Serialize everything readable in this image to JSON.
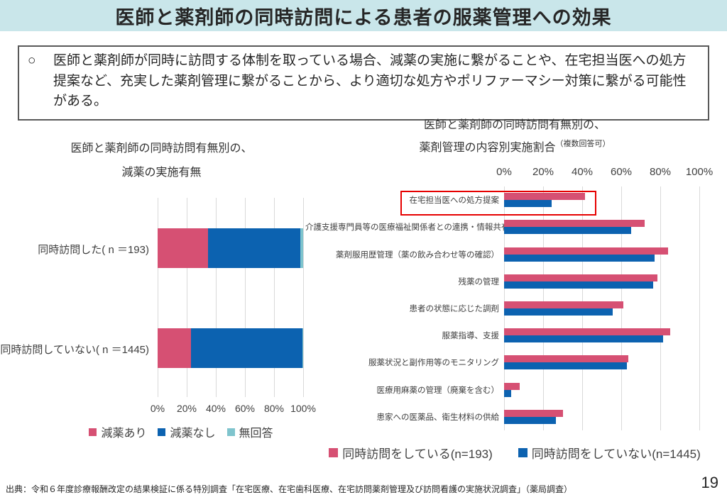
{
  "page": {
    "title": "医師と薬剤師の同時訪問による患者の服薬管理への効果",
    "bullet": "○",
    "summary": "医師と薬剤師が同時に訪問する体制を取っている場合、減薬の実施に繋がることや、在宅担当医への処方提案など、充実した薬剤管理に繋がることから、より適切な処方やポリファーマシー対策に繋がる可能性がある。",
    "source": "出典：令和６年度診療報酬改定の結果検証に係る特別調査「在宅医療、在宅歯科医療、在宅訪問薬剤管理及び訪問看護の実施状況調査」（薬局調査）",
    "page_number": "19"
  },
  "colors": {
    "header_bg": "#c9e6ea",
    "pink": "#d65073",
    "blue": "#0c62b0",
    "teal": "#7fc4cd",
    "gridline": "#d9d9d9",
    "highlight_red": "#e60000"
  },
  "chart_data": [
    {
      "type": "bar",
      "orientation": "horizontal-stacked",
      "title_line1": "医師と薬剤師の同時訪問有無別の、",
      "title_line2": "減薬の実施有無",
      "categories": [
        "同時訪問した( n ＝193)",
        "同時訪問していない( n ＝1445)"
      ],
      "series": [
        {
          "name": "減薬あり",
          "color": "#d65073",
          "values": [
            34.5,
            23.0
          ]
        },
        {
          "name": "減薬なし",
          "color": "#0c62b0",
          "values": [
            63.5,
            76.6
          ]
        },
        {
          "name": "無回答",
          "color": "#7fc4cd",
          "values": [
            2.0,
            0.4
          ]
        }
      ],
      "x_ticks": [
        "0%",
        "20%",
        "40%",
        "60%",
        "80%",
        "100%"
      ],
      "xlim": [
        0,
        100
      ],
      "grid": true,
      "legend_position": "bottom"
    },
    {
      "type": "bar",
      "orientation": "horizontal-grouped",
      "title_line1": "医師と薬剤師の同時訪問有無別の、",
      "title_line2": "薬剤管理の内容別実施割合",
      "title_note": "（複数回答可）",
      "categories": [
        "在宅担当医への処方提案",
        "介護支援専門員等の医療福祉関係者との連携・情報共有",
        "薬剤服用歴管理（薬の飲み合わせ等の確認）",
        "残薬の管理",
        "患者の状態に応じた調剤",
        "服薬指導、支援",
        "服薬状況と副作用等のモニタリング",
        "医療用麻薬の管理（廃棄を含む）",
        "患家への医薬品、衛生材料の供給"
      ],
      "series": [
        {
          "name": "同時訪問をしている(n=193)",
          "color": "#d65073",
          "values": [
            41.5,
            72.0,
            84.0,
            78.5,
            61.0,
            85.0,
            63.5,
            8.0,
            30.0
          ]
        },
        {
          "name": "同時訪問をしていない(n=1445)",
          "color": "#0c62b0",
          "values": [
            24.5,
            65.0,
            77.0,
            76.5,
            55.5,
            81.5,
            63.0,
            3.5,
            26.5
          ]
        }
      ],
      "x_ticks": [
        "0%",
        "20%",
        "40%",
        "60%",
        "80%",
        "100%"
      ],
      "xlim": [
        0,
        100
      ],
      "grid": true,
      "legend_position": "bottom",
      "highlight_category": "在宅担当医への処方提案"
    }
  ]
}
